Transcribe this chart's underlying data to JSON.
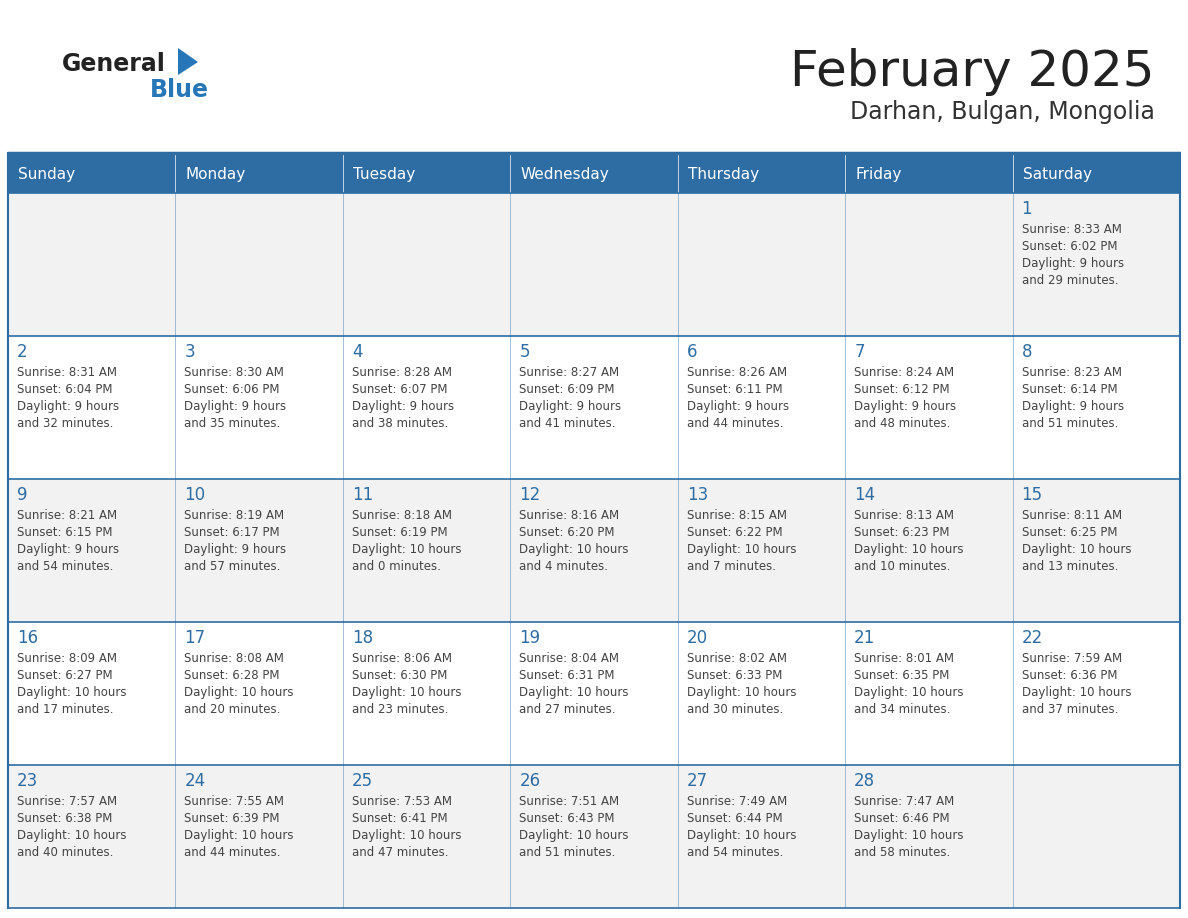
{
  "title": "February 2025",
  "subtitle": "Darhan, Bulgan, Mongolia",
  "days_of_week": [
    "Sunday",
    "Monday",
    "Tuesday",
    "Wednesday",
    "Thursday",
    "Friday",
    "Saturday"
  ],
  "header_bg": "#2E6DA4",
  "header_text_color": "#FFFFFF",
  "cell_bg_odd": "#F2F2F2",
  "cell_bg_even": "#FFFFFF",
  "border_color": "#2E6DA4",
  "day_num_color": "#2E6DA4",
  "info_color": "#444444",
  "title_color": "#222222",
  "subtitle_color": "#333333",
  "logo_general_color": "#222222",
  "logo_blue_color": "#2776B8",
  "weeks": [
    [
      {
        "day": null,
        "info": ""
      },
      {
        "day": null,
        "info": ""
      },
      {
        "day": null,
        "info": ""
      },
      {
        "day": null,
        "info": ""
      },
      {
        "day": null,
        "info": ""
      },
      {
        "day": null,
        "info": ""
      },
      {
        "day": 1,
        "info": "Sunrise: 8:33 AM\nSunset: 6:02 PM\nDaylight: 9 hours\nand 29 minutes."
      }
    ],
    [
      {
        "day": 2,
        "info": "Sunrise: 8:31 AM\nSunset: 6:04 PM\nDaylight: 9 hours\nand 32 minutes."
      },
      {
        "day": 3,
        "info": "Sunrise: 8:30 AM\nSunset: 6:06 PM\nDaylight: 9 hours\nand 35 minutes."
      },
      {
        "day": 4,
        "info": "Sunrise: 8:28 AM\nSunset: 6:07 PM\nDaylight: 9 hours\nand 38 minutes."
      },
      {
        "day": 5,
        "info": "Sunrise: 8:27 AM\nSunset: 6:09 PM\nDaylight: 9 hours\nand 41 minutes."
      },
      {
        "day": 6,
        "info": "Sunrise: 8:26 AM\nSunset: 6:11 PM\nDaylight: 9 hours\nand 44 minutes."
      },
      {
        "day": 7,
        "info": "Sunrise: 8:24 AM\nSunset: 6:12 PM\nDaylight: 9 hours\nand 48 minutes."
      },
      {
        "day": 8,
        "info": "Sunrise: 8:23 AM\nSunset: 6:14 PM\nDaylight: 9 hours\nand 51 minutes."
      }
    ],
    [
      {
        "day": 9,
        "info": "Sunrise: 8:21 AM\nSunset: 6:15 PM\nDaylight: 9 hours\nand 54 minutes."
      },
      {
        "day": 10,
        "info": "Sunrise: 8:19 AM\nSunset: 6:17 PM\nDaylight: 9 hours\nand 57 minutes."
      },
      {
        "day": 11,
        "info": "Sunrise: 8:18 AM\nSunset: 6:19 PM\nDaylight: 10 hours\nand 0 minutes."
      },
      {
        "day": 12,
        "info": "Sunrise: 8:16 AM\nSunset: 6:20 PM\nDaylight: 10 hours\nand 4 minutes."
      },
      {
        "day": 13,
        "info": "Sunrise: 8:15 AM\nSunset: 6:22 PM\nDaylight: 10 hours\nand 7 minutes."
      },
      {
        "day": 14,
        "info": "Sunrise: 8:13 AM\nSunset: 6:23 PM\nDaylight: 10 hours\nand 10 minutes."
      },
      {
        "day": 15,
        "info": "Sunrise: 8:11 AM\nSunset: 6:25 PM\nDaylight: 10 hours\nand 13 minutes."
      }
    ],
    [
      {
        "day": 16,
        "info": "Sunrise: 8:09 AM\nSunset: 6:27 PM\nDaylight: 10 hours\nand 17 minutes."
      },
      {
        "day": 17,
        "info": "Sunrise: 8:08 AM\nSunset: 6:28 PM\nDaylight: 10 hours\nand 20 minutes."
      },
      {
        "day": 18,
        "info": "Sunrise: 8:06 AM\nSunset: 6:30 PM\nDaylight: 10 hours\nand 23 minutes."
      },
      {
        "day": 19,
        "info": "Sunrise: 8:04 AM\nSunset: 6:31 PM\nDaylight: 10 hours\nand 27 minutes."
      },
      {
        "day": 20,
        "info": "Sunrise: 8:02 AM\nSunset: 6:33 PM\nDaylight: 10 hours\nand 30 minutes."
      },
      {
        "day": 21,
        "info": "Sunrise: 8:01 AM\nSunset: 6:35 PM\nDaylight: 10 hours\nand 34 minutes."
      },
      {
        "day": 22,
        "info": "Sunrise: 7:59 AM\nSunset: 6:36 PM\nDaylight: 10 hours\nand 37 minutes."
      }
    ],
    [
      {
        "day": 23,
        "info": "Sunrise: 7:57 AM\nSunset: 6:38 PM\nDaylight: 10 hours\nand 40 minutes."
      },
      {
        "day": 24,
        "info": "Sunrise: 7:55 AM\nSunset: 6:39 PM\nDaylight: 10 hours\nand 44 minutes."
      },
      {
        "day": 25,
        "info": "Sunrise: 7:53 AM\nSunset: 6:41 PM\nDaylight: 10 hours\nand 47 minutes."
      },
      {
        "day": 26,
        "info": "Sunrise: 7:51 AM\nSunset: 6:43 PM\nDaylight: 10 hours\nand 51 minutes."
      },
      {
        "day": 27,
        "info": "Sunrise: 7:49 AM\nSunset: 6:44 PM\nDaylight: 10 hours\nand 54 minutes."
      },
      {
        "day": 28,
        "info": "Sunrise: 7:47 AM\nSunset: 6:46 PM\nDaylight: 10 hours\nand 58 minutes."
      },
      {
        "day": null,
        "info": ""
      }
    ]
  ]
}
